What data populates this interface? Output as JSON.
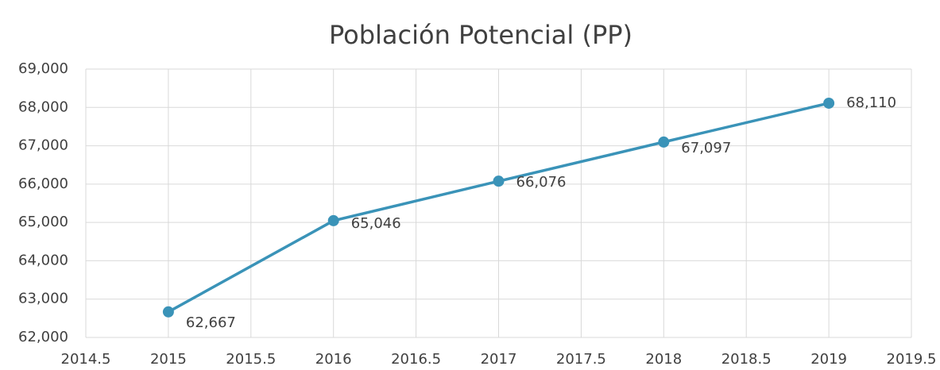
{
  "chart_data": {
    "type": "line",
    "title": "Población  Potencial (PP)",
    "x": [
      2015,
      2016,
      2017,
      2018,
      2019
    ],
    "values": [
      62667,
      65046,
      66076,
      67097,
      68110
    ],
    "value_labels": [
      "62,667",
      "65,046",
      "66,076",
      "67,097",
      "68,110"
    ],
    "color": "#3a93b8",
    "xlim": [
      2014.5,
      2019.5
    ],
    "xticks": [
      2014.5,
      2015,
      2015.5,
      2016,
      2016.5,
      2017,
      2017.5,
      2018,
      2018.5,
      2019,
      2019.5
    ],
    "ylim": [
      62000,
      69000
    ],
    "yticks": [
      {
        "value": 62000,
        "label": "62,000"
      },
      {
        "value": 63000,
        "label": "63,000"
      },
      {
        "value": 64000,
        "label": "64,000"
      },
      {
        "value": 65000,
        "label": "65,000"
      },
      {
        "value": 66000,
        "label": "66,000"
      },
      {
        "value": 67000,
        "label": "67,000"
      },
      {
        "value": 68000,
        "label": "68,000"
      },
      {
        "value": 69000,
        "label": "69,000"
      }
    ],
    "grid": true
  }
}
